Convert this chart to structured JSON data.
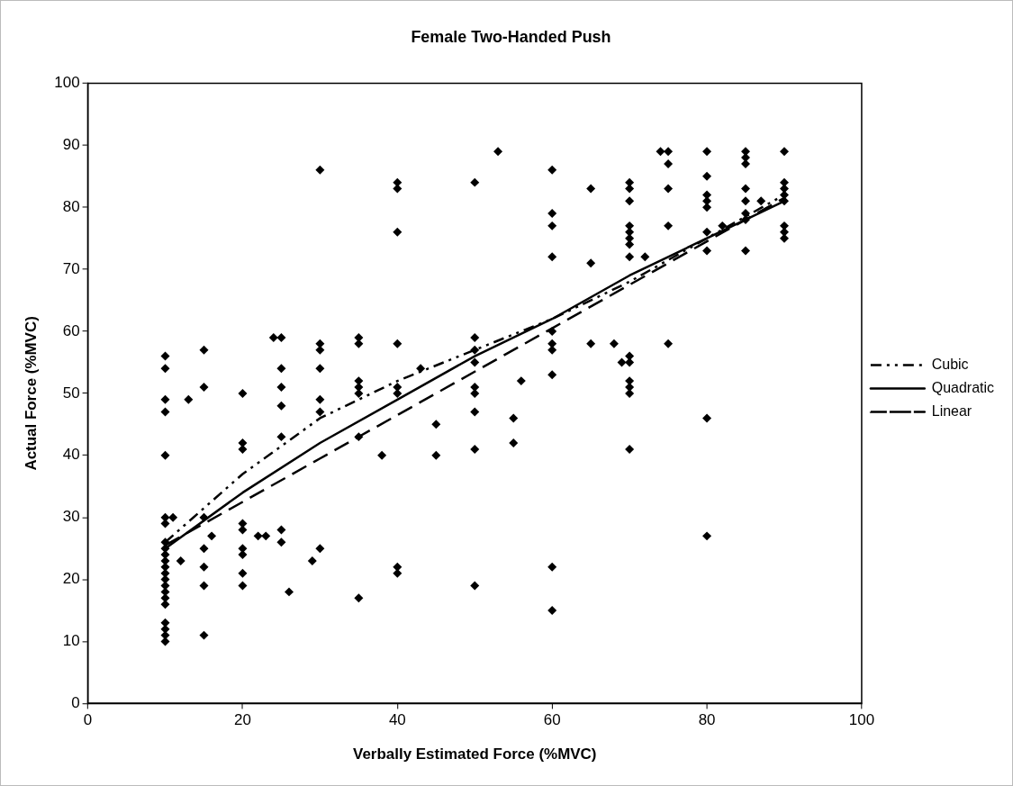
{
  "chart_data": {
    "type": "scatter",
    "title": "Female Two-Handed Push",
    "xlabel": "Verbally Estimated Force (%MVC)",
    "ylabel": "Actual Force (%MVC)",
    "xlim": [
      0,
      100
    ],
    "xticks": [
      0,
      20,
      40,
      60,
      80,
      100
    ],
    "ylim": [
      0,
      100
    ],
    "yticks": [
      0,
      10,
      20,
      30,
      40,
      50,
      60,
      70,
      80,
      90,
      100
    ],
    "grid": false,
    "legend": "right",
    "marker": "diamond",
    "series": [
      {
        "color": "#000000",
        "x": [
          10,
          10,
          10,
          10,
          10,
          10,
          10,
          10,
          10,
          10,
          10,
          10,
          10,
          10,
          10,
          10,
          10,
          10,
          10,
          10,
          10,
          10,
          11,
          12,
          13,
          15,
          15,
          15,
          15,
          15,
          15,
          15,
          16,
          20,
          20,
          20,
          20,
          20,
          20,
          20,
          20,
          20,
          22,
          23,
          24,
          25,
          25,
          25,
          25,
          25,
          25,
          25,
          26,
          29,
          30,
          30,
          30,
          30,
          30,
          30,
          30,
          35,
          35,
          35,
          35,
          35,
          35,
          35,
          38,
          40,
          40,
          40,
          40,
          40,
          40,
          40,
          40,
          43,
          45,
          45,
          50,
          50,
          50,
          50,
          50,
          50,
          50,
          50,
          50,
          53,
          55,
          55,
          56,
          60,
          60,
          60,
          60,
          60,
          60,
          60,
          60,
          60,
          60,
          65,
          65,
          65,
          68,
          69,
          70,
          70,
          70,
          70,
          70,
          70,
          70,
          70,
          70,
          70,
          70,
          70,
          70,
          70,
          72,
          74,
          75,
          75,
          75,
          75,
          75,
          80,
          80,
          80,
          80,
          80,
          80,
          80,
          80,
          80,
          82,
          85,
          85,
          85,
          85,
          85,
          85,
          85,
          85,
          87,
          90,
          90,
          90,
          90,
          90,
          90,
          90,
          90
        ],
        "values": [
          56,
          54,
          49,
          47,
          40,
          30,
          29,
          26,
          25,
          24,
          23,
          22,
          21,
          20,
          19,
          18,
          17,
          16,
          13,
          12,
          11,
          10,
          30,
          23,
          49,
          57,
          51,
          30,
          25,
          22,
          19,
          11,
          27,
          50,
          42,
          41,
          29,
          28,
          25,
          24,
          21,
          19,
          27,
          27,
          59,
          59,
          54,
          51,
          48,
          43,
          28,
          26,
          18,
          23,
          86,
          58,
          57,
          54,
          49,
          47,
          25,
          59,
          58,
          52,
          51,
          50,
          43,
          17,
          40,
          84,
          83,
          76,
          58,
          51,
          50,
          22,
          21,
          54,
          45,
          40,
          84,
          59,
          57,
          55,
          51,
          50,
          47,
          41,
          19,
          89,
          46,
          42,
          52,
          86,
          79,
          77,
          72,
          60,
          58,
          57,
          53,
          22,
          15,
          83,
          71,
          58,
          58,
          55,
          84,
          83,
          81,
          77,
          76,
          75,
          74,
          72,
          56,
          55,
          52,
          51,
          50,
          41,
          72,
          89,
          89,
          87,
          83,
          77,
          58,
          89,
          85,
          82,
          81,
          80,
          76,
          73,
          46,
          27,
          77,
          89,
          88,
          87,
          83,
          81,
          79,
          78,
          73,
          81,
          89,
          84,
          83,
          82,
          81,
          77,
          76,
          75
        ]
      },
      {
        "type": "line",
        "name": "Cubic",
        "color": "#000000",
        "line_style": "dotted",
        "marker": "none",
        "x": [
          10,
          20,
          30,
          40,
          50,
          60,
          70,
          80,
          90
        ],
        "values": [
          26,
          37,
          46,
          52,
          57,
          62,
          68,
          75,
          82
        ]
      },
      {
        "type": "line",
        "name": "Quadratic",
        "color": "#000000",
        "line_style": "solid",
        "marker": "none",
        "x": [
          10,
          20,
          30,
          40,
          50,
          60,
          70,
          80,
          90
        ],
        "values": [
          25,
          34,
          42,
          49,
          56,
          62,
          69,
          75,
          81
        ]
      },
      {
        "type": "line",
        "name": "Linear",
        "color": "#000000",
        "line_style": "dashed",
        "marker": "none",
        "x": [
          10,
          20,
          30,
          40,
          50,
          60,
          70,
          80,
          90
        ],
        "values": [
          25.5,
          32.5,
          39.5,
          46.5,
          53.5,
          60.5,
          67.5,
          74.5,
          81.5
        ]
      }
    ]
  }
}
